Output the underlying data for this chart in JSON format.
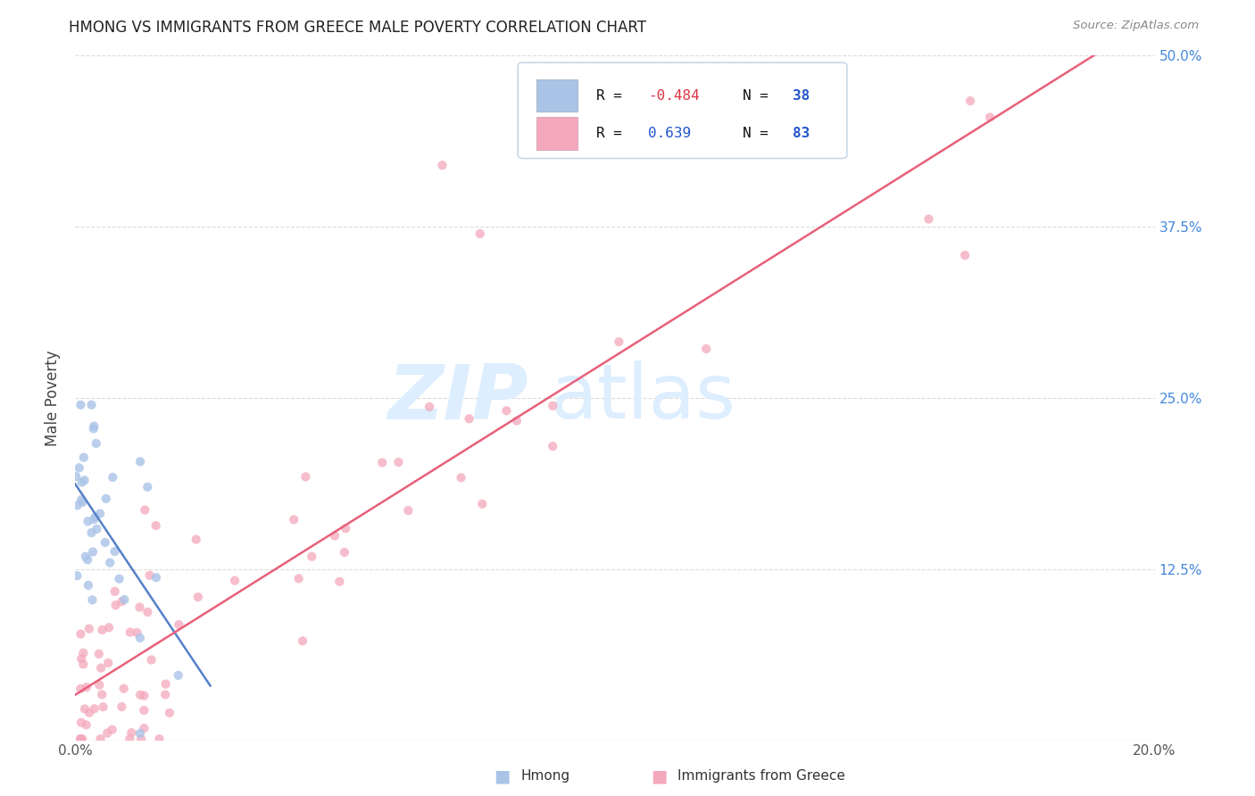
{
  "title": "HMONG VS IMMIGRANTS FROM GREECE MALE POVERTY CORRELATION CHART",
  "source": "Source: ZipAtlas.com",
  "ylabel": "Male Poverty",
  "xlim": [
    0.0,
    0.2
  ],
  "ylim": [
    0.0,
    0.5
  ],
  "hmong_color": "#aac4e8",
  "greece_color": "#f4a8bc",
  "trendline_hmong_color": "#5580c8",
  "trendline_greece_color": "#e8607a",
  "watermark_color": "#ddeeff",
  "background_color": "#ffffff",
  "grid_color": "#cccccc",
  "title_color": "#222222",
  "axis_label_color": "#444444",
  "right_tick_color": "#4488dd",
  "legend_r_color": "#111111",
  "legend_n_color": "#2255cc",
  "legend_val_color": "#dd3344",
  "hmong_dot_size": 55,
  "greece_dot_size": 55
}
